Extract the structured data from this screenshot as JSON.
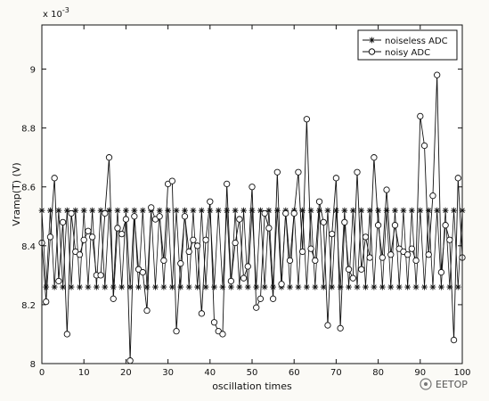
{
  "chart_data": {
    "type": "line",
    "title": "",
    "xlabel": "oscillation times",
    "ylabel": "Vramp(T) (V)",
    "y_exponent_label": "x 10",
    "y_exponent_power": "-3",
    "xlim": [
      0,
      100
    ],
    "ylim": [
      8.0,
      9.15
    ],
    "x_ticks": [
      0,
      10,
      20,
      30,
      40,
      50,
      60,
      70,
      80,
      90,
      100
    ],
    "y_ticks": [
      8,
      8.2,
      8.4,
      8.6,
      8.8,
      9
    ],
    "y_tick_labels": [
      "8",
      "8.2",
      "8.4",
      "8.6",
      "8.8",
      "9"
    ],
    "grid": false,
    "legend_position": "top-right",
    "series": [
      {
        "name": "noiseless ADC",
        "marker": "asterisk",
        "x": [
          0,
          1,
          2,
          3,
          4,
          5,
          6,
          7,
          8,
          9,
          10,
          11,
          12,
          13,
          14,
          15,
          16,
          17,
          18,
          19,
          20,
          21,
          22,
          23,
          24,
          25,
          26,
          27,
          28,
          29,
          30,
          31,
          32,
          33,
          34,
          35,
          36,
          37,
          38,
          39,
          40,
          41,
          42,
          43,
          44,
          45,
          46,
          47,
          48,
          49,
          50,
          51,
          52,
          53,
          54,
          55,
          56,
          57,
          58,
          59,
          60,
          61,
          62,
          63,
          64,
          65,
          66,
          67,
          68,
          69,
          70,
          71,
          72,
          73,
          74,
          75,
          76,
          77,
          78,
          79,
          80,
          81,
          82,
          83,
          84,
          85,
          86,
          87,
          88,
          89,
          90,
          91,
          92,
          93,
          94,
          95,
          96,
          97,
          98,
          99,
          100
        ],
        "values": [
          8.52,
          8.26,
          8.52,
          8.26,
          8.52,
          8.26,
          8.52,
          8.26,
          8.52,
          8.26,
          8.52,
          8.26,
          8.52,
          8.26,
          8.52,
          8.26,
          8.52,
          8.26,
          8.52,
          8.26,
          8.52,
          8.26,
          8.52,
          8.26,
          8.52,
          8.26,
          8.52,
          8.26,
          8.52,
          8.26,
          8.52,
          8.26,
          8.52,
          8.26,
          8.52,
          8.26,
          8.52,
          8.26,
          8.52,
          8.26,
          8.52,
          8.26,
          8.52,
          8.26,
          8.52,
          8.26,
          8.52,
          8.26,
          8.52,
          8.26,
          8.52,
          8.26,
          8.52,
          8.26,
          8.52,
          8.26,
          8.52,
          8.26,
          8.52,
          8.26,
          8.52,
          8.26,
          8.52,
          8.26,
          8.52,
          8.26,
          8.52,
          8.26,
          8.52,
          8.26,
          8.52,
          8.26,
          8.52,
          8.26,
          8.52,
          8.26,
          8.52,
          8.26,
          8.52,
          8.26,
          8.52,
          8.26,
          8.52,
          8.26,
          8.52,
          8.26,
          8.52,
          8.26,
          8.52,
          8.26,
          8.52,
          8.26,
          8.52,
          8.26,
          8.52,
          8.26,
          8.52,
          8.26,
          8.52,
          8.26,
          8.52
        ]
      },
      {
        "name": "noisy ADC",
        "marker": "circle",
        "x": [
          0,
          1,
          2,
          3,
          4,
          5,
          6,
          7,
          8,
          9,
          10,
          11,
          12,
          13,
          14,
          15,
          16,
          17,
          18,
          19,
          20,
          21,
          22,
          23,
          24,
          25,
          26,
          27,
          28,
          29,
          30,
          31,
          32,
          33,
          34,
          35,
          36,
          37,
          38,
          39,
          40,
          41,
          42,
          43,
          44,
          45,
          46,
          47,
          48,
          49,
          50,
          51,
          52,
          53,
          54,
          55,
          56,
          57,
          58,
          59,
          60,
          61,
          62,
          63,
          64,
          65,
          66,
          67,
          68,
          69,
          70,
          71,
          72,
          73,
          74,
          75,
          76,
          77,
          78,
          79,
          80,
          81,
          82,
          83,
          84,
          85,
          86,
          87,
          88,
          89,
          90,
          91,
          92,
          93,
          94,
          95,
          96,
          97,
          98,
          99,
          100
        ],
        "values": [
          8.41,
          8.21,
          8.43,
          8.63,
          8.28,
          8.48,
          8.1,
          8.51,
          8.38,
          8.37,
          8.42,
          8.45,
          8.43,
          8.3,
          8.3,
          8.51,
          8.7,
          8.22,
          8.46,
          8.44,
          8.49,
          8.01,
          8.5,
          8.32,
          8.31,
          8.18,
          8.53,
          8.49,
          8.5,
          8.35,
          8.61,
          8.62,
          8.11,
          8.34,
          8.5,
          8.38,
          8.42,
          8.4,
          8.17,
          8.42,
          8.55,
          8.14,
          8.11,
          8.1,
          8.61,
          8.28,
          8.41,
          8.49,
          8.29,
          8.33,
          8.6,
          8.19,
          8.22,
          8.51,
          8.46,
          8.22,
          8.65,
          8.27,
          8.51,
          8.35,
          8.51,
          8.65,
          8.38,
          8.83,
          8.39,
          8.35,
          8.55,
          8.48,
          8.13,
          8.44,
          8.63,
          8.12,
          8.48,
          8.32,
          8.29,
          8.65,
          8.32,
          8.43,
          8.36,
          8.7,
          8.47,
          8.36,
          8.59,
          8.37,
          8.47,
          8.39,
          8.38,
          8.37,
          8.39,
          8.35,
          8.84,
          8.74,
          8.37,
          8.57,
          8.98,
          8.31,
          8.47,
          8.42,
          8.08,
          8.63,
          8.36
        ]
      }
    ]
  },
  "watermark": {
    "icon": "eetop-logo-icon",
    "text": "EETOP"
  }
}
